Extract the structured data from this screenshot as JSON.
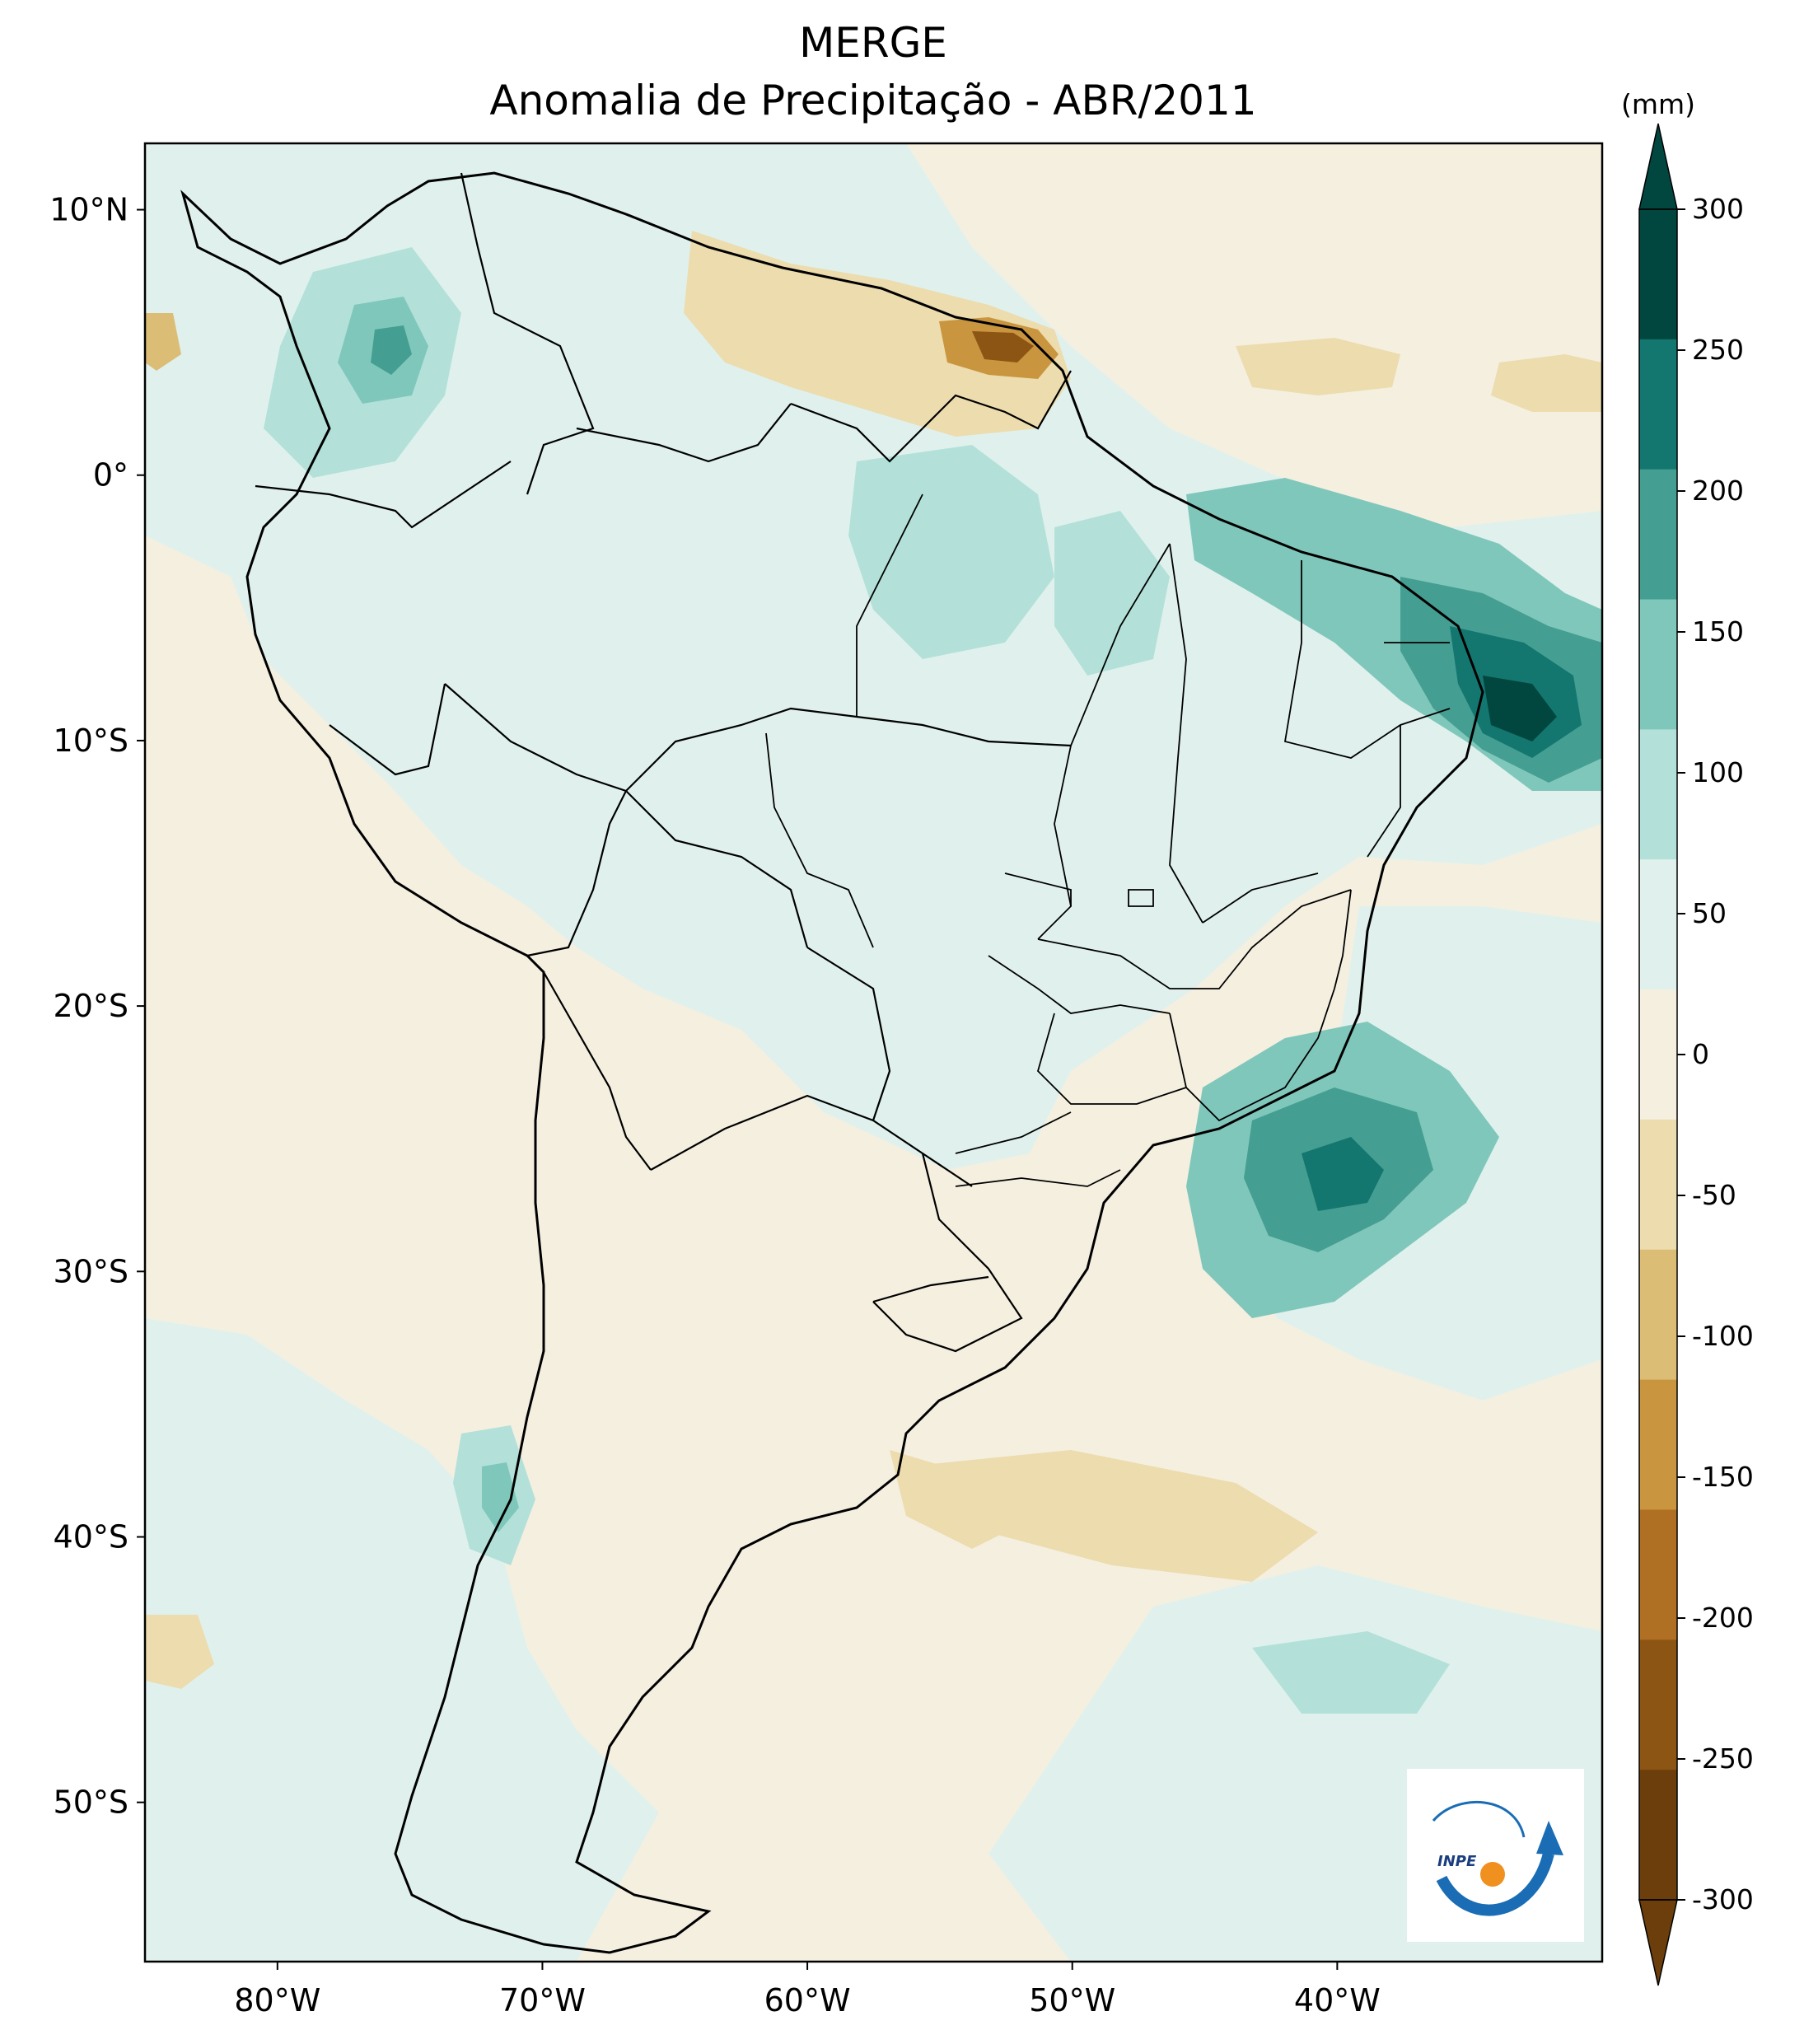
{
  "title": {
    "line1": "MERGE",
    "line2": "Anomalia de Precipitação - ABR/2011"
  },
  "map": {
    "lon_range": [
      -85,
      -30
    ],
    "lat_range": [
      -56,
      12.5
    ],
    "lat_ticks": [
      {
        "value": 10,
        "label": "10°N"
      },
      {
        "value": 0,
        "label": "0°"
      },
      {
        "value": -10,
        "label": "10°S"
      },
      {
        "value": -20,
        "label": "20°S"
      },
      {
        "value": -30,
        "label": "30°S"
      },
      {
        "value": -40,
        "label": "40°S"
      },
      {
        "value": -50,
        "label": "50°S"
      }
    ],
    "lon_ticks": [
      {
        "value": -80,
        "label": "80°W"
      },
      {
        "value": -70,
        "label": "70°W"
      },
      {
        "value": -60,
        "label": "60°W"
      },
      {
        "value": -50,
        "label": "50°W"
      },
      {
        "value": -40,
        "label": "40°W"
      }
    ]
  },
  "colorbar": {
    "unit": "(mm)",
    "levels": [
      -300,
      -250,
      -200,
      -150,
      -100,
      -50,
      0,
      50,
      100,
      150,
      200,
      250,
      300
    ],
    "labels": [
      "300",
      "250",
      "200",
      "150",
      "100",
      "50",
      "0",
      "-50",
      "-100",
      "-150",
      "-200",
      "-250",
      "-300"
    ],
    "colors": [
      "#6b3e0c",
      "#8d5514",
      "#b07024",
      "#c9953f",
      "#dcbd76",
      "#ecdcae",
      "#f5efe0",
      "#e0f1ed",
      "#b3e1d9",
      "#80c7bb",
      "#449e92",
      "#137770",
      "#01473f"
    ],
    "colors_top_to_bottom": [
      "#01473f",
      "#137770",
      "#449e92",
      "#80c7bb",
      "#b3e1d9",
      "#e0f1ed",
      "#f5efe0",
      "#ecdcae",
      "#dcbd76",
      "#c9953f",
      "#b07024",
      "#8d5514",
      "#6b3e0c"
    ]
  },
  "logo": {
    "text": "INPE",
    "colors": {
      "ring": "#1a6db5",
      "dot": "#f0901e"
    }
  }
}
